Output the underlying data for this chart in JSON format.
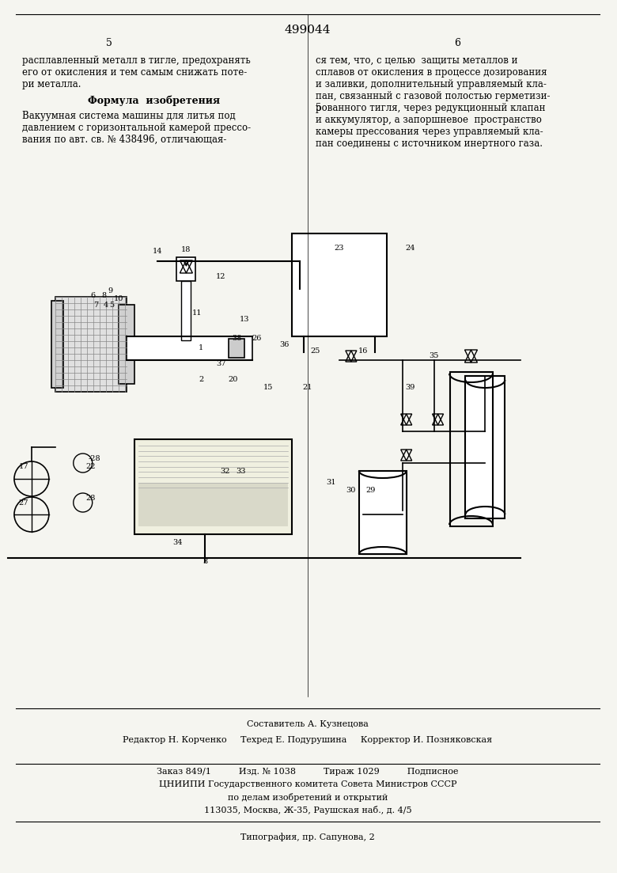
{
  "bg_color": "#f5f5f0",
  "page_width": 7.8,
  "page_height": 11.03,
  "patent_number": "499044",
  "col_numbers": [
    "5",
    "6"
  ],
  "left_text": [
    "расплавленный металл в тигле, предохранять",
    "его от окисления и тем самым снижать поте-",
    "ри металла.",
    "Формула  изобретения",
    "Вакуумная система машины для литья под",
    "давлением с горизонтальной камерой прессо-",
    "вания по авт. св. № 438496, отличающая-"
  ],
  "right_text": [
    "ся тем, что, с целью  защиты металлов и",
    "сплавов от окисления в процессе дозирования",
    "и заливки, дополнительный управляемый кла-",
    "пан, связанный с газовой полостью герметизи-",
    "рованного тигля, через редукционный клапан",
    "и аккумулятор, а запоршневое  пространство",
    "камеры прессования через управляемый кла-",
    "пан соединены с источником инертного газа."
  ],
  "footer_lines": [
    "Составитель А. Кузнецова",
    "Редактор Н. Корченко     Техред Е. Подурушина     Корректор И. Позняковская",
    "Заказ 849/1          Изд. № 1038          Тираж 1029          Подписное",
    "ЦНИИПИ Государственного комитета Совета Министров СССР",
    "по делам изобретений и открытий",
    "113035, Москва, Ж-35, Раушская наб., д. 4/5",
    "Типография, пр. Сапунова, 2"
  ]
}
